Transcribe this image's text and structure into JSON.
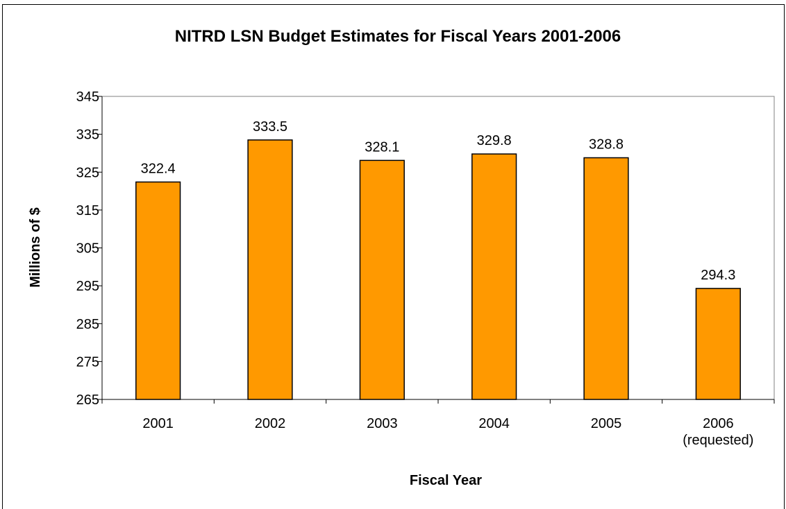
{
  "chart_data": {
    "type": "bar",
    "title": "NITRD LSN Budget Estimates for Fiscal Years 2001-2006",
    "xlabel": "Fiscal Year",
    "ylabel": "Millions of $",
    "categories": [
      [
        "2001"
      ],
      [
        "2002"
      ],
      [
        "2003"
      ],
      [
        "2004"
      ],
      [
        "2005"
      ],
      [
        "2006",
        "(requested)"
      ]
    ],
    "values": [
      322.4,
      333.5,
      328.1,
      329.8,
      328.8,
      294.3
    ],
    "data_labels": [
      "322.4",
      "333.5",
      "328.1",
      "329.8",
      "328.8",
      "294.3"
    ],
    "ylim": [
      265,
      345
    ],
    "yticks": [
      265,
      275,
      285,
      295,
      305,
      315,
      325,
      335,
      345
    ],
    "grid": false,
    "legend": "none",
    "colors": {
      "bar_fill": "#ff9900",
      "bar_stroke": "#000000",
      "plot_background": "#ffffff"
    }
  }
}
